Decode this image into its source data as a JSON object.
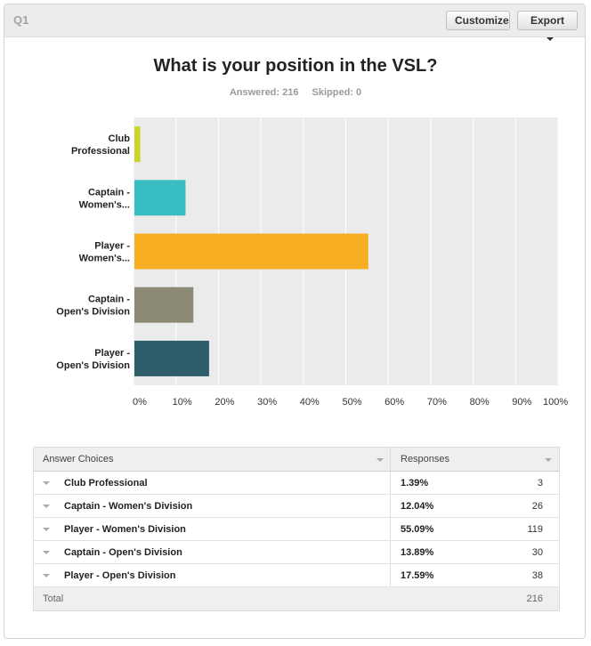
{
  "header": {
    "question_number": "Q1",
    "customize_label": "Customize",
    "export_label": "Export"
  },
  "question": {
    "title": "What is your position in the VSL?",
    "answered": "Answered: 216",
    "skipped": "Skipped: 0"
  },
  "chart_data": {
    "type": "bar",
    "orientation": "horizontal",
    "categories": [
      [
        "Club",
        "Professional"
      ],
      [
        "Captain -",
        "Women's..."
      ],
      [
        "Player -",
        "Women's..."
      ],
      [
        "Captain -",
        "Open's Division"
      ],
      [
        "Player -",
        "Open's Division"
      ]
    ],
    "values": [
      1.39,
      12.04,
      55.09,
      13.89,
      17.59
    ],
    "colors": [
      "#c9d52b",
      "#37bdc2",
      "#f7ae22",
      "#8c8a77",
      "#2d5d6a"
    ],
    "xlim": [
      0,
      100
    ],
    "xticks": [
      "0%",
      "10%",
      "20%",
      "30%",
      "40%",
      "50%",
      "60%",
      "70%",
      "80%",
      "90%",
      "100%"
    ],
    "grid": true,
    "plot_background": "#ebebeb"
  },
  "table": {
    "header": {
      "col1": "Answer Choices",
      "col2": "Responses"
    },
    "rows": [
      {
        "label": "Club Professional",
        "percent": "1.39%",
        "count": "3"
      },
      {
        "label": "Captain - Women's Division",
        "percent": "12.04%",
        "count": "26"
      },
      {
        "label": "Player - Women's Division",
        "percent": "55.09%",
        "count": "119"
      },
      {
        "label": "Captain - Open's Division",
        "percent": "13.89%",
        "count": "30"
      },
      {
        "label": "Player - Open's Division",
        "percent": "17.59%",
        "count": "38"
      }
    ],
    "footer": {
      "label": "Total",
      "count": "216"
    }
  }
}
